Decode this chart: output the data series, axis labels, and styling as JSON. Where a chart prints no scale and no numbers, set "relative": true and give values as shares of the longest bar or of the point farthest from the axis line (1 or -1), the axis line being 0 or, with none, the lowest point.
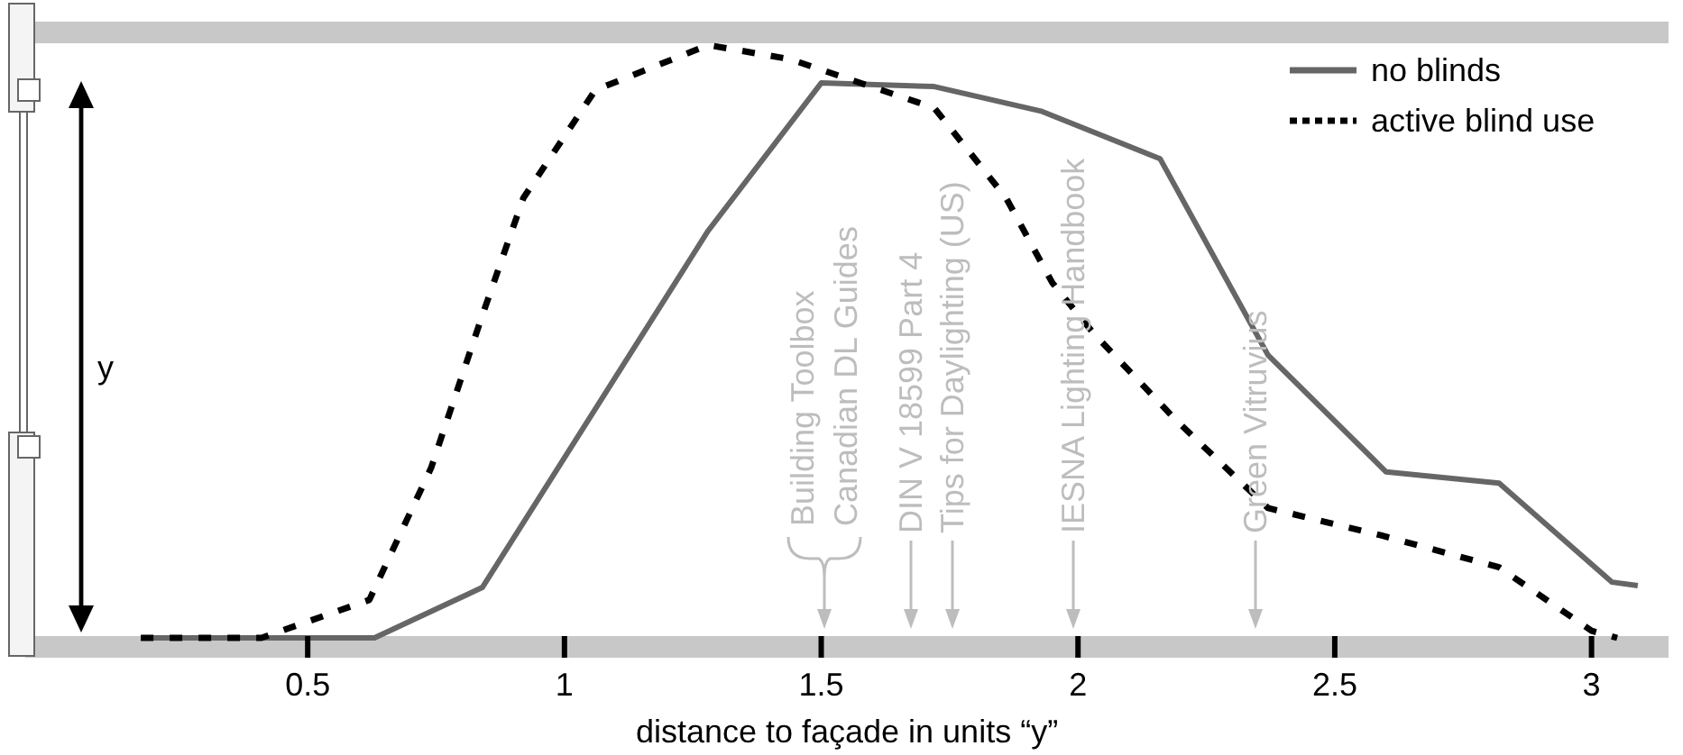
{
  "chart_data": {
    "type": "line",
    "relative": true,
    "xlabel": "distance to façade in units “y”",
    "xlim": [
      -0.05,
      3.15
    ],
    "xticks": [
      0.5,
      1,
      1.5,
      2,
      2.5,
      3
    ],
    "legend": "top right",
    "series": [
      {
        "name": "no blinds",
        "color": "#666666",
        "line_style": "solid",
        "x": [
          0.175,
          0.63,
          0.84,
          1.28,
          1.5,
          1.72,
          1.93,
          2.16,
          2.37,
          2.6,
          2.82,
          3.04,
          3.09
        ],
        "values": [
          0,
          0,
          0.085,
          0.687,
          0.936,
          0.93,
          0.888,
          0.808,
          0.477,
          0.28,
          0.261,
          0.094,
          0.088
        ]
      },
      {
        "name": "active blind use",
        "color": "#000000",
        "line_style": "dashed",
        "x": [
          0.175,
          0.41,
          0.62,
          0.74,
          0.84,
          0.92,
          1.06,
          1.28,
          1.44,
          1.72,
          1.86,
          1.95,
          2.03,
          2.19,
          2.37,
          2.59,
          2.82,
          3.0,
          3.05
        ],
        "values": [
          0,
          0,
          0.064,
          0.286,
          0.544,
          0.742,
          0.924,
          1,
          0.976,
          0.894,
          0.742,
          0.599,
          0.514,
          0.368,
          0.219,
          0.173,
          0.119,
          0.012,
          0
        ]
      }
    ],
    "annotations": [
      "y",
      "Building Toolbox",
      "Canadian DL Guides",
      "DIN V 18599 Part 4",
      "Tips for Daylighting (US)",
      "IESNA Lighting Handbook",
      "Green Vitruvius"
    ]
  }
}
